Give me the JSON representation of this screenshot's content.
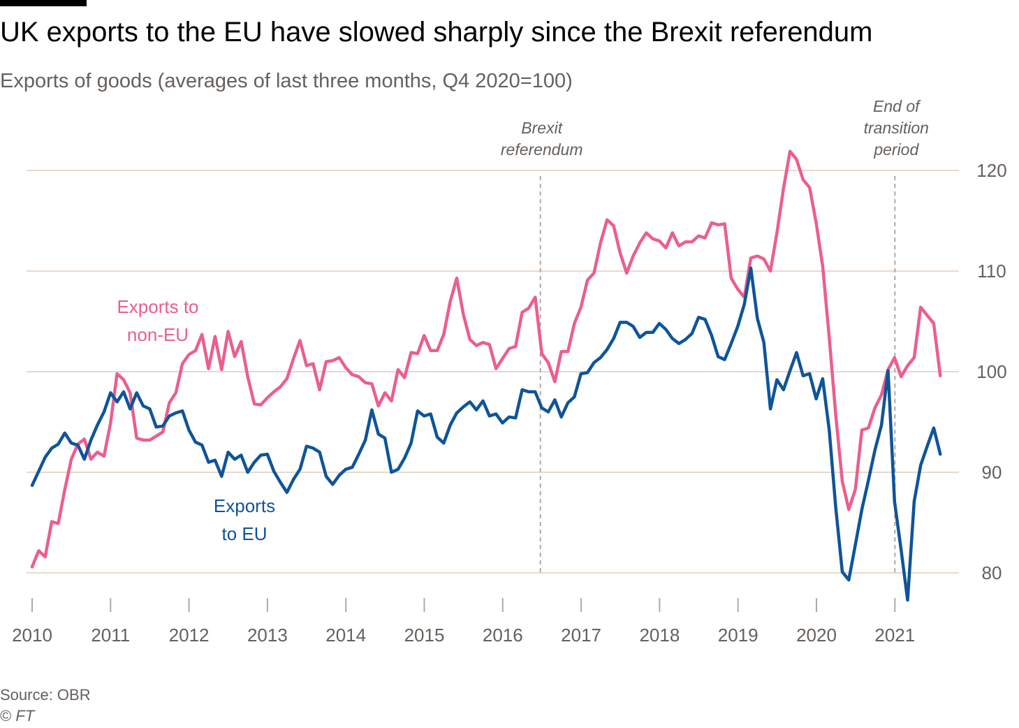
{
  "header": {
    "title": "UK exports to the EU have slowed sharply since the Brexit referendum",
    "subtitle": "Exports of goods (averages of last three months, Q4 2020=100)"
  },
  "footer": {
    "source": "Source: OBR",
    "copyright_symbol": "©",
    "copyright_org": "FT"
  },
  "colors": {
    "non_eu": "#eb5e8d",
    "eu": "#0f5499",
    "grid": "#e6d9ce",
    "axis": "#b3a9a0",
    "topbar": "#000000"
  },
  "chart_data": {
    "type": "line",
    "title": "UK exports to the EU have slowed sharply since the Brexit referendum",
    "subtitle": "Exports of goods (averages of last three months, Q4 2020=100)",
    "xlabel": "",
    "ylabel": "",
    "x_ticks": [
      "2010",
      "2011",
      "2012",
      "2013",
      "2014",
      "2015",
      "2016",
      "2017",
      "2018",
      "2019",
      "2020",
      "2021"
    ],
    "y_ticks": [
      "80",
      "90",
      "100",
      "110",
      "120"
    ],
    "xlim": [
      2010.0,
      2021.7
    ],
    "ylim": [
      76,
      123
    ],
    "y_axis_side": "right",
    "grid": "horizontal",
    "annotations": [
      {
        "x": 2016.48,
        "label_lines": [
          "Brexit",
          "referendum"
        ]
      },
      {
        "x": 2021.0,
        "label_lines": [
          "End of",
          "transition",
          "period"
        ]
      }
    ],
    "series": [
      {
        "name": "Exports to non-EU",
        "label_lines": [
          "Exports to",
          "non-EU"
        ],
        "color": "#eb5e8d",
        "start": 2010.0,
        "step": 0.0833,
        "values": [
          80.6,
          82.2,
          81.6,
          85.1,
          84.9,
          88.3,
          91.3,
          92.8,
          93.3,
          91.3,
          92.0,
          91.6,
          94.9,
          99.8,
          99.2,
          97.9,
          93.4,
          93.2,
          93.2,
          93.6,
          94.0,
          96.9,
          97.9,
          100.8,
          101.7,
          102.1,
          103.7,
          100.3,
          103.5,
          100.2,
          104.0,
          101.5,
          103.0,
          99.5,
          96.8,
          96.7,
          97.4,
          98.0,
          98.5,
          99.3,
          101.3,
          103.1,
          100.6,
          100.8,
          98.2,
          101.0,
          101.1,
          101.4,
          100.4,
          99.7,
          99.5,
          98.9,
          98.8,
          96.6,
          97.9,
          97.1,
          100.2,
          99.4,
          101.9,
          101.8,
          103.6,
          102.1,
          102.1,
          103.7,
          107.0,
          109.3,
          105.7,
          103.2,
          102.6,
          102.9,
          102.7,
          100.3,
          101.3,
          102.3,
          102.5,
          105.9,
          106.3,
          107.4,
          101.8,
          100.9,
          99.0,
          102.0,
          102.0,
          104.8,
          106.4,
          109.1,
          109.8,
          112.8,
          115.1,
          114.5,
          111.8,
          109.8,
          111.5,
          112.8,
          113.8,
          113.2,
          113.0,
          112.3,
          113.8,
          112.5,
          112.9,
          112.9,
          113.5,
          113.3,
          114.8,
          114.6,
          114.7,
          109.3,
          108.2,
          107.4,
          111.3,
          111.5,
          111.2,
          110.0,
          113.8,
          118.2,
          121.9,
          121.1,
          119.1,
          118.3,
          114.8,
          110.5,
          103.4,
          95.7,
          89.1,
          86.3,
          88.3,
          94.2,
          94.4,
          96.4,
          97.7,
          100.2,
          101.4,
          99.5,
          100.6,
          101.4,
          106.4,
          105.6,
          104.8,
          99.6
        ]
      },
      {
        "name": "Exports to EU",
        "label_lines": [
          "Exports",
          "to EU"
        ],
        "color": "#0f5499",
        "start": 2010.0,
        "step": 0.0833,
        "values": [
          88.7,
          90.1,
          91.5,
          92.4,
          92.8,
          93.9,
          92.9,
          92.7,
          91.3,
          93.2,
          94.7,
          96.0,
          97.9,
          97.0,
          98.0,
          96.3,
          97.9,
          96.6,
          96.3,
          94.5,
          94.6,
          95.6,
          95.9,
          96.1,
          94.2,
          93.0,
          92.7,
          91.0,
          91.2,
          89.6,
          92.0,
          91.3,
          91.7,
          90.0,
          91.0,
          91.7,
          91.8,
          90.1,
          89.0,
          88.0,
          89.3,
          90.3,
          92.6,
          92.4,
          92.0,
          89.6,
          88.8,
          89.7,
          90.3,
          90.5,
          91.8,
          93.2,
          96.2,
          93.8,
          93.4,
          90.0,
          90.3,
          91.4,
          92.9,
          96.1,
          95.6,
          95.8,
          93.5,
          92.9,
          94.7,
          95.9,
          96.5,
          97.0,
          96.2,
          97.1,
          95.6,
          95.8,
          94.9,
          95.5,
          95.4,
          98.2,
          98.0,
          98.0,
          96.4,
          96.0,
          97.2,
          95.5,
          96.9,
          97.5,
          99.8,
          99.9,
          100.9,
          101.4,
          102.2,
          103.3,
          104.9,
          104.9,
          104.5,
          103.4,
          103.9,
          103.9,
          104.8,
          104.2,
          103.3,
          102.8,
          103.2,
          103.8,
          105.4,
          105.2,
          103.6,
          101.5,
          101.2,
          102.8,
          104.5,
          106.7,
          110.3,
          105.3,
          102.9,
          96.3,
          99.2,
          98.2,
          100.1,
          101.9,
          99.6,
          99.8,
          97.3,
          99.3,
          94.2,
          86.5,
          80.1,
          79.3,
          82.8,
          86.3,
          89.2,
          92.2,
          94.7,
          100.1,
          87.1,
          82.3,
          77.3,
          87.1,
          90.7,
          92.6,
          94.4,
          91.8
        ]
      }
    ]
  }
}
